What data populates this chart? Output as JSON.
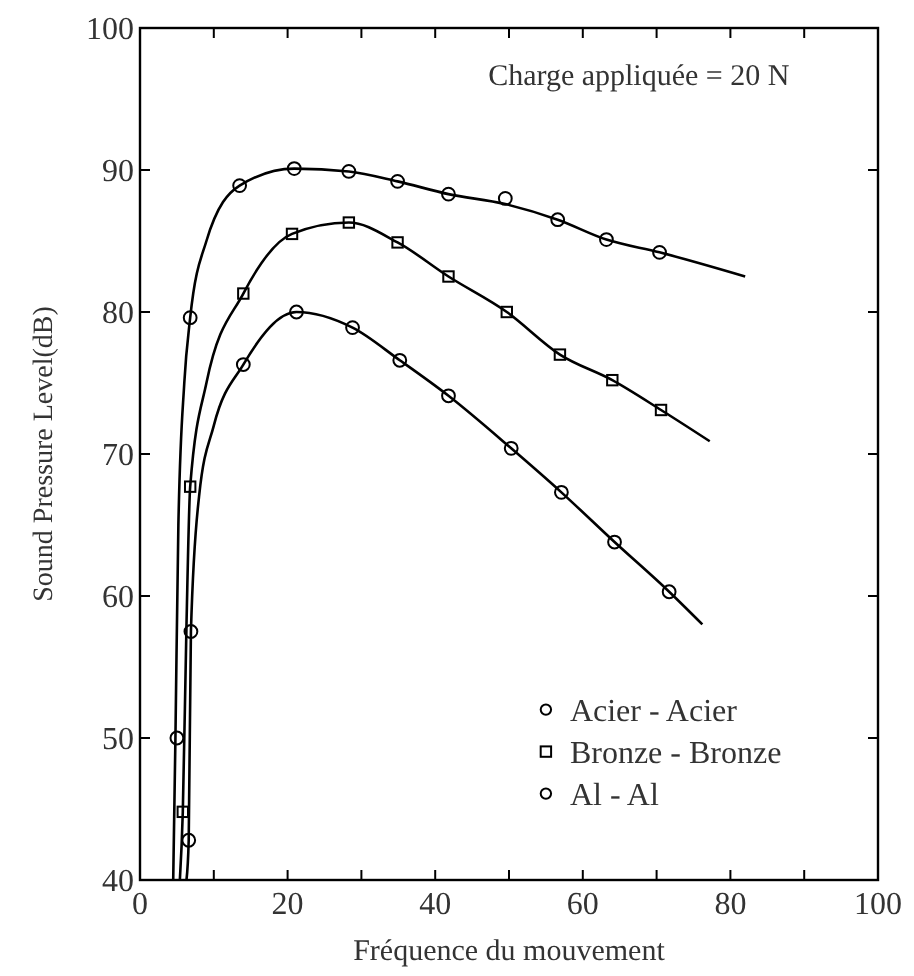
{
  "chart_data": {
    "type": "scatter",
    "xlabel": "Fréquence du mouvement",
    "ylabel": "Sound Pressure Level(dB)",
    "annotations": [
      "Charge appliquée = 20 N"
    ],
    "xlim": [
      0,
      100
    ],
    "ylim": [
      40,
      100
    ],
    "xticks": [
      0,
      {
        "value": 10,
        "label": null
      },
      20,
      {
        "value": 30,
        "label": null
      },
      40,
      {
        "value": 50,
        "label": null
      },
      60,
      {
        "value": 70,
        "label": null
      },
      80,
      {
        "value": 90,
        "label": null
      },
      100
    ],
    "yticks": [
      40,
      50,
      60,
      70,
      80,
      90,
      100
    ],
    "grid": false,
    "legend": "bottom",
    "series": [
      {
        "name": "Acier - Acier",
        "marker": "circle",
        "color": "#000000",
        "x": [
          5,
          6.8,
          13.5,
          20.9,
          28.3,
          34.9,
          41.8,
          49.5,
          56.6,
          63.2,
          70.4
        ],
        "values": [
          50,
          79.6,
          88.9,
          90.1,
          89.9,
          89.2,
          88.3,
          88,
          86.5,
          85.1,
          84.2
        ]
      },
      {
        "name": "Bronze - Bronze",
        "marker": "square",
        "color": "#000000",
        "x": [
          5.8,
          6.8,
          14,
          20.6,
          28.3,
          34.9,
          41.8,
          49.7,
          56.9,
          64,
          70.6
        ],
        "values": [
          44.8,
          67.7,
          81.3,
          85.5,
          86.3,
          84.9,
          82.5,
          80,
          77,
          75.2,
          73.1
        ]
      },
      {
        "name": "Al - Al",
        "marker": "circle",
        "color": "#000000",
        "x": [
          6.6,
          6.9,
          14,
          21.2,
          28.8,
          35.2,
          41.8,
          50.3,
          57.1,
          64.3,
          71.7
        ],
        "values": [
          42.8,
          57.5,
          76.3,
          80,
          78.9,
          76.6,
          74.1,
          70.4,
          67.3,
          63.8,
          60.3
        ]
      },
      {
        "type": "line",
        "marker": "none",
        "color": "#000000",
        "x": [
          4.5,
          4.8,
          5.2,
          6,
          6.8,
          9,
          13.5,
          20.9,
          28.3,
          34.9,
          41.8,
          49.5,
          56.6,
          63.2,
          70.4,
          82
        ],
        "values": [
          40,
          50,
          65,
          75,
          79.6,
          85,
          88.9,
          90.1,
          89.9,
          89.2,
          88.3,
          87.6,
          86.5,
          85.1,
          84.2,
          82.5
        ]
      },
      {
        "type": "line",
        "marker": "none",
        "color": "#000000",
        "x": [
          5.4,
          5.8,
          6.3,
          6.8,
          9,
          14,
          20.6,
          28.3,
          34.9,
          41.8,
          49.7,
          56.9,
          64,
          70.6,
          77.2
        ],
        "values": [
          40,
          44.8,
          58,
          67.7,
          75,
          81.3,
          85.5,
          86.3,
          84.9,
          82.5,
          80,
          77,
          75.2,
          73.1,
          70.9
        ]
      },
      {
        "type": "line",
        "marker": "none",
        "color": "#000000",
        "x": [
          6.3,
          6.6,
          6.9,
          8,
          10,
          14,
          21.2,
          28.8,
          35.2,
          41.8,
          50.3,
          57.1,
          64.3,
          71.7,
          76.2
        ],
        "values": [
          40,
          42.8,
          57.5,
          67,
          72,
          76.3,
          80,
          78.9,
          76.6,
          74.1,
          70.4,
          67.3,
          63.8,
          60.3,
          58
        ]
      }
    ]
  }
}
